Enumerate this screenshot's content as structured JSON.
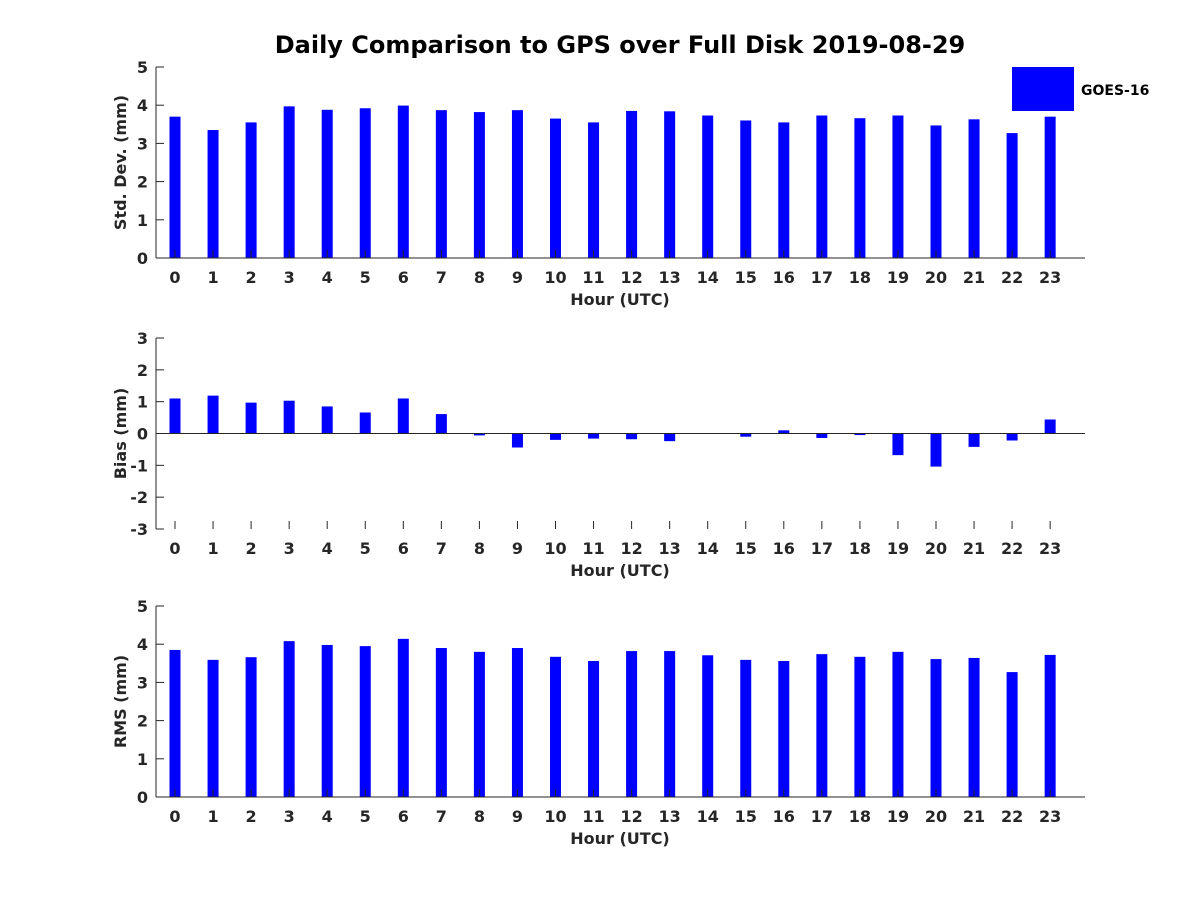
{
  "title": "Daily Comparison to GPS over Full Disk 2019-08-29",
  "legend": {
    "label": "GOES-16"
  },
  "colors": {
    "bar": "#0000ff",
    "axis": "#262626"
  },
  "chart_data": [
    {
      "type": "bar",
      "name": "std-dev",
      "xlabel": "Hour (UTC)",
      "ylabel": "Std. Dev. (mm)",
      "categories": [
        "0",
        "1",
        "2",
        "3",
        "4",
        "5",
        "6",
        "7",
        "8",
        "9",
        "10",
        "11",
        "12",
        "13",
        "14",
        "15",
        "16",
        "17",
        "18",
        "19",
        "20",
        "21",
        "22",
        "23"
      ],
      "series": [
        {
          "name": "GOES-16",
          "values": [
            3.7,
            3.35,
            3.55,
            3.97,
            3.88,
            3.92,
            3.99,
            3.87,
            3.82,
            3.87,
            3.65,
            3.55,
            3.85,
            3.84,
            3.73,
            3.6,
            3.55,
            3.73,
            3.66,
            3.73,
            3.47,
            3.63,
            3.27,
            3.7
          ]
        }
      ],
      "ylim": [
        0,
        5
      ],
      "yticks": [
        0,
        1,
        2,
        3,
        4,
        5
      ]
    },
    {
      "type": "bar",
      "name": "bias",
      "xlabel": "Hour (UTC)",
      "ylabel": "Bias (mm)",
      "categories": [
        "0",
        "1",
        "2",
        "3",
        "4",
        "5",
        "6",
        "7",
        "8",
        "9",
        "10",
        "11",
        "12",
        "13",
        "14",
        "15",
        "16",
        "17",
        "18",
        "19",
        "20",
        "21",
        "22",
        "23"
      ],
      "series": [
        {
          "name": "GOES-16",
          "values": [
            1.1,
            1.19,
            0.97,
            1.03,
            0.85,
            0.66,
            1.1,
            0.61,
            -0.06,
            -0.44,
            -0.2,
            -0.16,
            -0.18,
            -0.24,
            0.0,
            -0.1,
            0.1,
            -0.14,
            -0.05,
            -0.68,
            -1.04,
            -0.42,
            -0.22,
            0.44
          ]
        }
      ],
      "ylim": [
        -3,
        3
      ],
      "yticks": [
        -3,
        -2,
        -1,
        0,
        1,
        2,
        3
      ]
    },
    {
      "type": "bar",
      "name": "rms",
      "xlabel": "Hour (UTC)",
      "ylabel": "RMS (mm)",
      "categories": [
        "0",
        "1",
        "2",
        "3",
        "4",
        "5",
        "6",
        "7",
        "8",
        "9",
        "10",
        "11",
        "12",
        "13",
        "14",
        "15",
        "16",
        "17",
        "18",
        "19",
        "20",
        "21",
        "22",
        "23"
      ],
      "series": [
        {
          "name": "GOES-16",
          "values": [
            3.85,
            3.59,
            3.66,
            4.08,
            3.98,
            3.95,
            4.14,
            3.9,
            3.8,
            3.9,
            3.67,
            3.56,
            3.82,
            3.82,
            3.71,
            3.59,
            3.56,
            3.74,
            3.67,
            3.8,
            3.61,
            3.64,
            3.27,
            3.72
          ]
        }
      ],
      "ylim": [
        0,
        5
      ],
      "yticks": [
        0,
        1,
        2,
        3,
        4,
        5
      ]
    }
  ]
}
